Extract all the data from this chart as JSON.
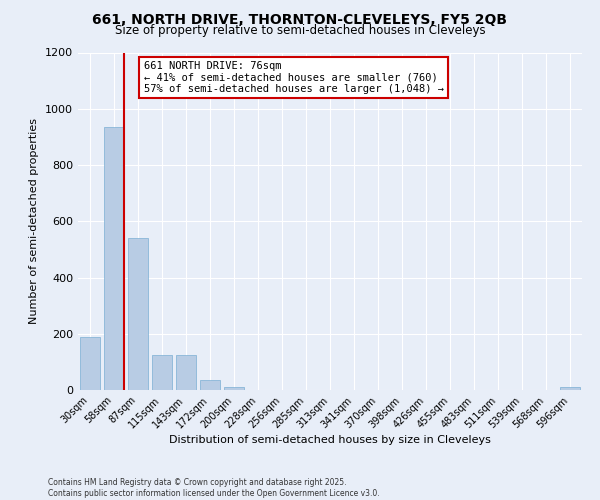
{
  "title1": "661, NORTH DRIVE, THORNTON-CLEVELEYS, FY5 2QB",
  "title2": "Size of property relative to semi-detached houses in Cleveleys",
  "xlabel": "Distribution of semi-detached houses by size in Cleveleys",
  "ylabel": "Number of semi-detached properties",
  "footnote1": "Contains HM Land Registry data © Crown copyright and database right 2025.",
  "footnote2": "Contains public sector information licensed under the Open Government Licence v3.0.",
  "annotation_line1": "661 NORTH DRIVE: 76sqm",
  "annotation_line2": "← 41% of semi-detached houses are smaller (760)",
  "annotation_line3": "57% of semi-detached houses are larger (1,048) →",
  "categories": [
    "30sqm",
    "58sqm",
    "87sqm",
    "115sqm",
    "143sqm",
    "172sqm",
    "200sqm",
    "228sqm",
    "256sqm",
    "285sqm",
    "313sqm",
    "341sqm",
    "370sqm",
    "398sqm",
    "426sqm",
    "455sqm",
    "483sqm",
    "511sqm",
    "539sqm",
    "568sqm",
    "596sqm"
  ],
  "values": [
    190,
    935,
    540,
    125,
    125,
    35,
    10,
    0,
    0,
    0,
    0,
    0,
    0,
    0,
    0,
    0,
    0,
    0,
    0,
    0,
    10
  ],
  "bar_color": "#b8cce4",
  "bar_edge_color": "#7bafd4",
  "vline_color": "#cc0000",
  "ylim": [
    0,
    1200
  ],
  "yticks": [
    0,
    200,
    400,
    600,
    800,
    1000,
    1200
  ],
  "annotation_box_color": "#cc0000",
  "background_color": "#e8eef8",
  "grid_color": "#ffffff"
}
